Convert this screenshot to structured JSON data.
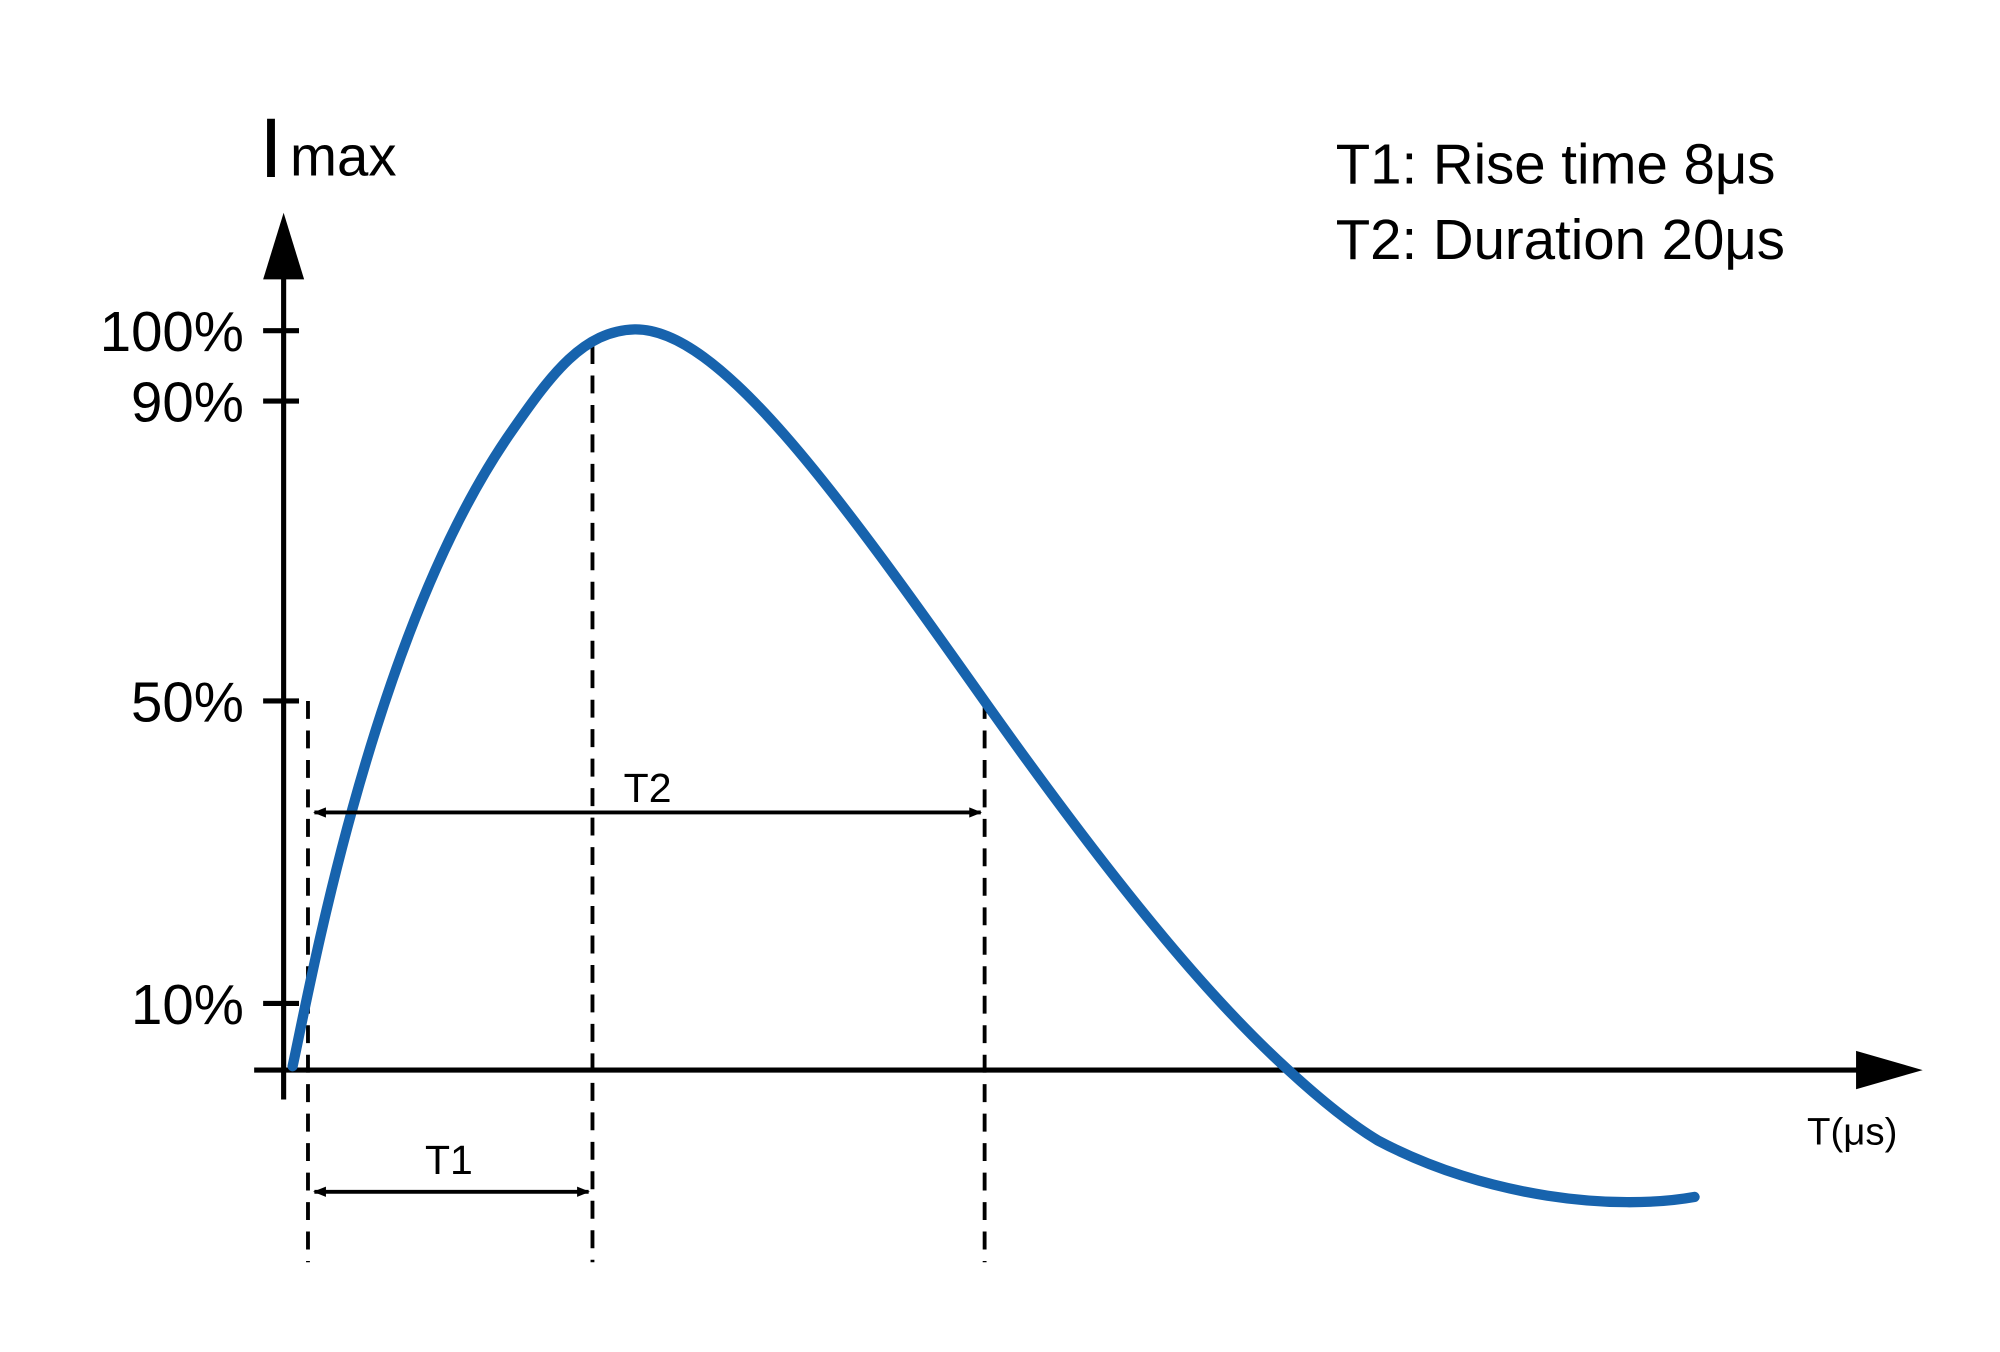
{
  "y_axis_title": {
    "symbol": "I",
    "subscript": "max"
  },
  "legend": [
    "T1: Rise time 8μs",
    "T2: Duration 20μs"
  ],
  "y_tick_labels": [
    "100%",
    "90%",
    "50%",
    "10%"
  ],
  "x_axis_label": "T(μs)",
  "intervals": [
    "T1",
    "T2"
  ]
}
